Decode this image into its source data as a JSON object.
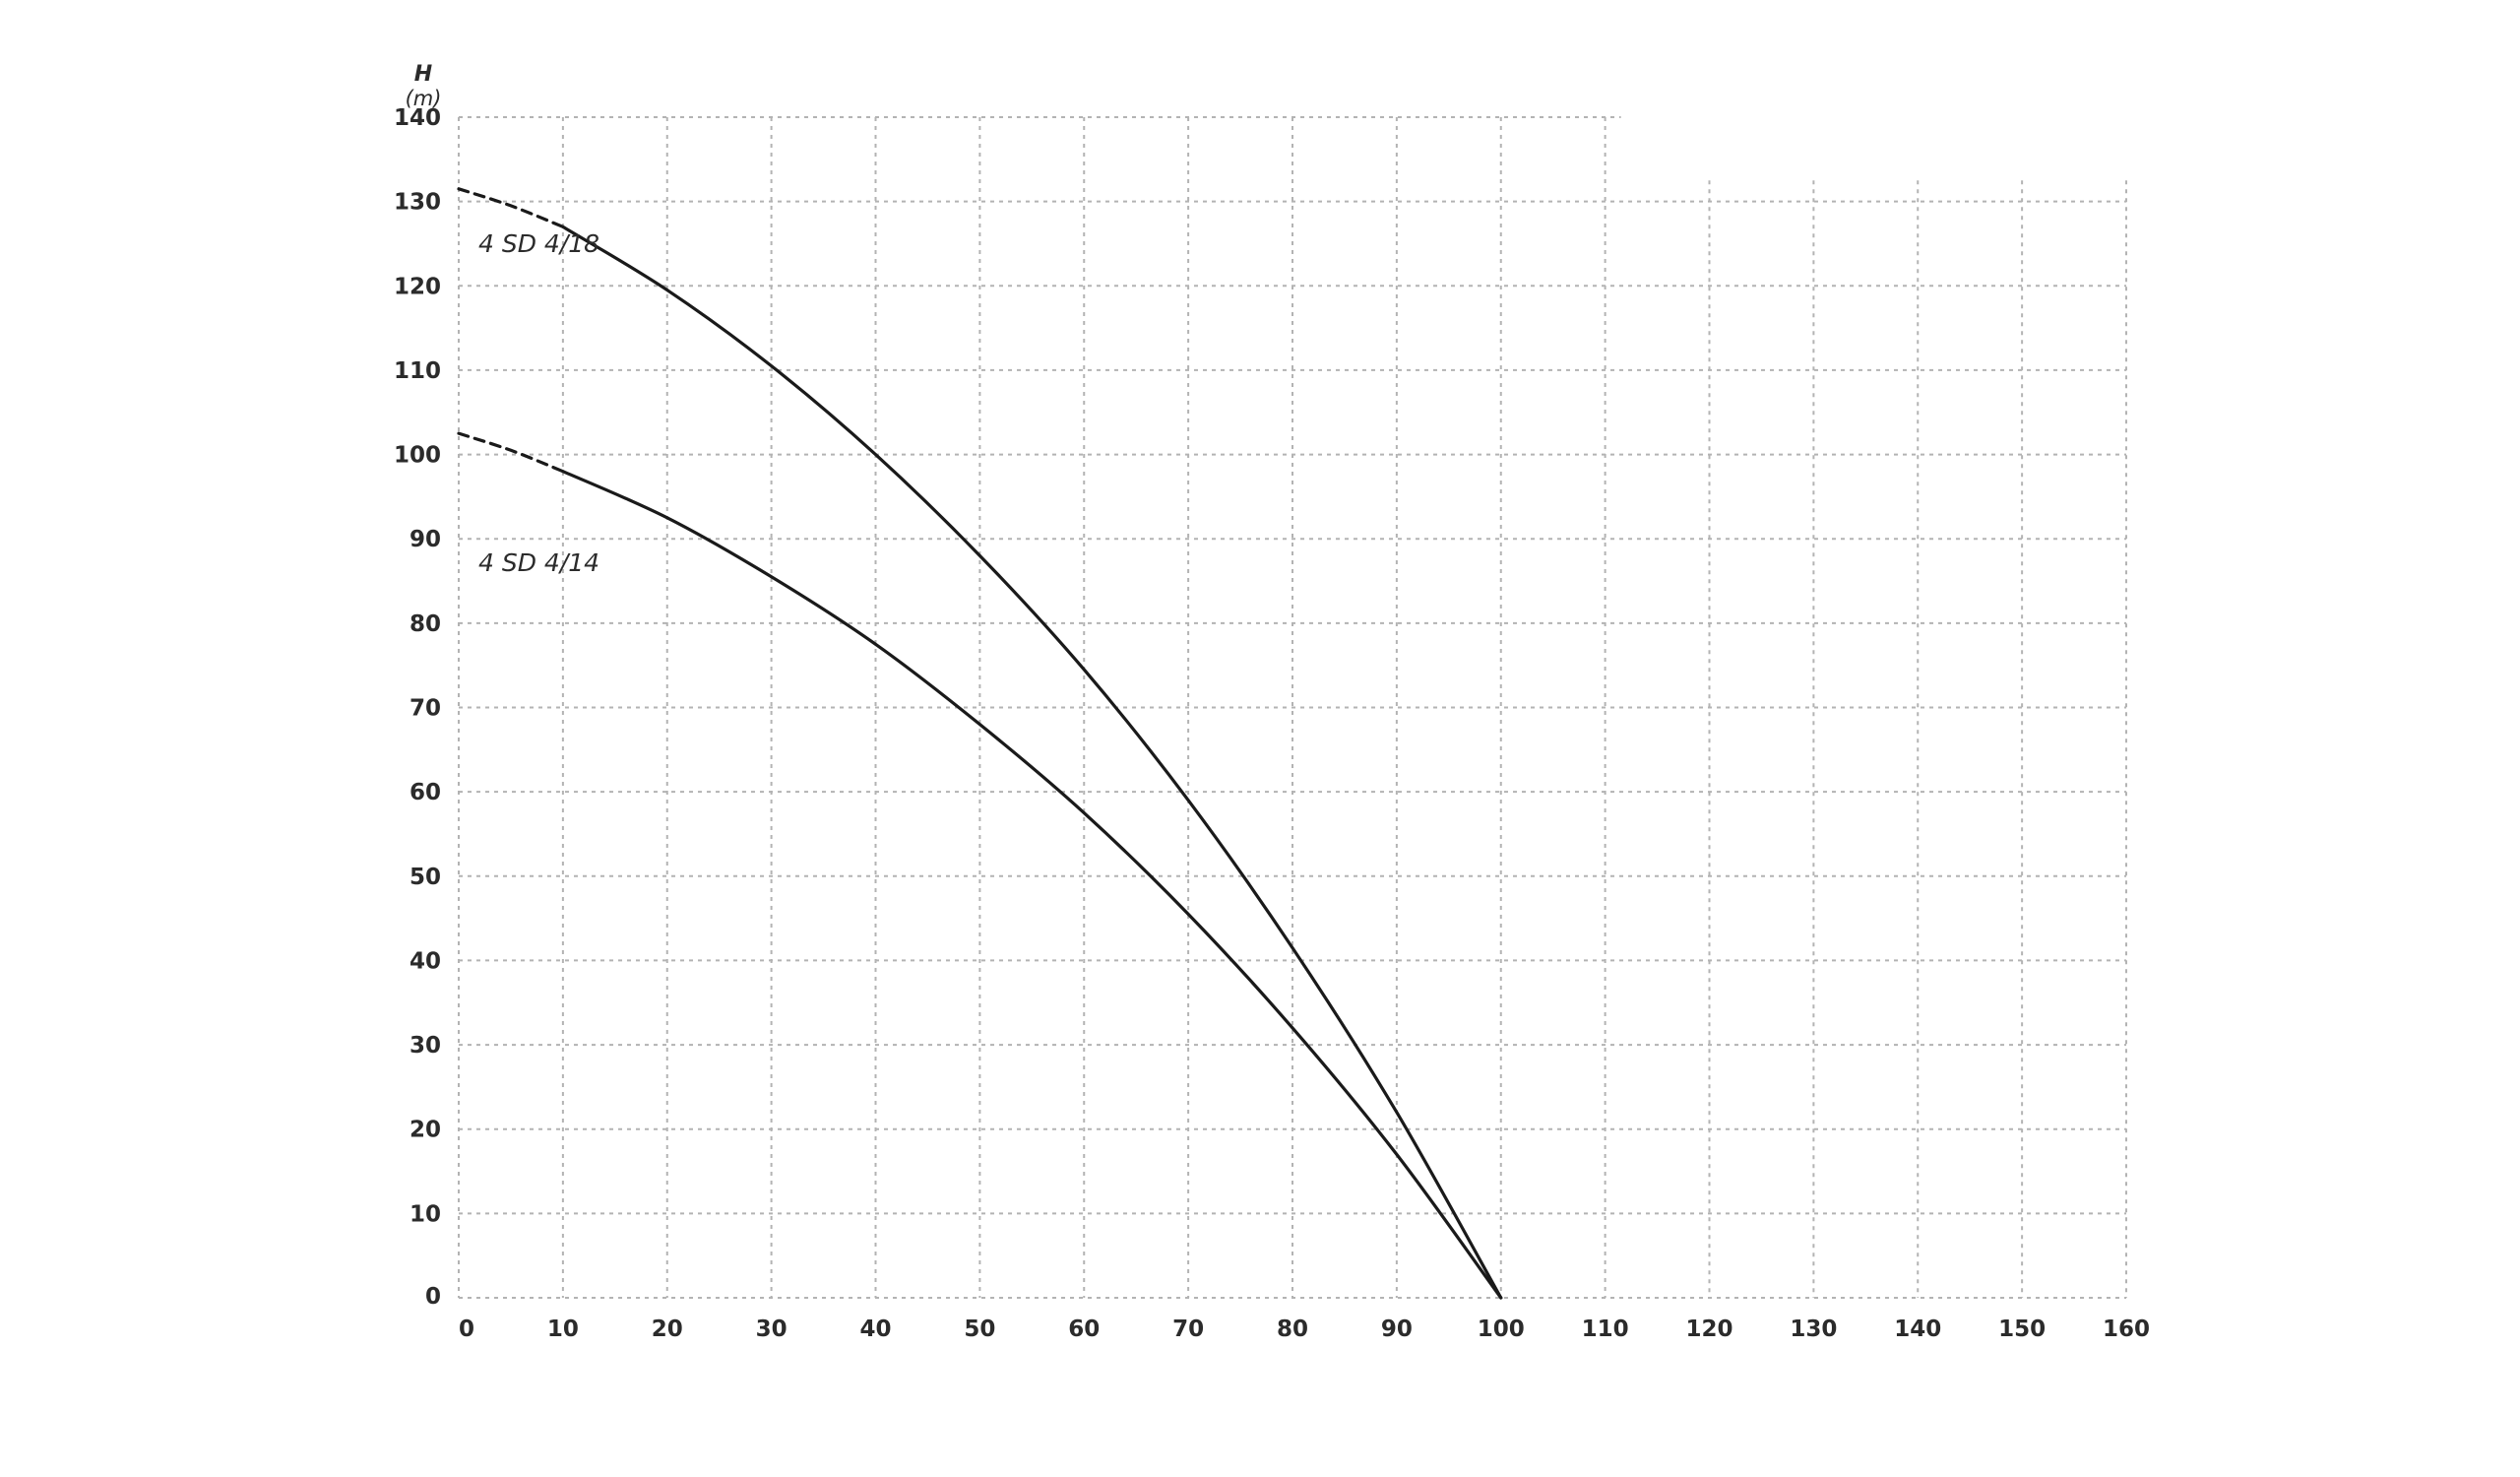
{
  "chart_data": {
    "type": "line",
    "title": "",
    "ylabel": "H",
    "yunit": "(m)",
    "xlabel": "",
    "xlim": [
      0,
      160
    ],
    "ylim": [
      0,
      140
    ],
    "x_ticks": [
      0,
      10,
      20,
      30,
      40,
      50,
      60,
      70,
      80,
      90,
      100,
      110,
      120,
      130,
      140,
      150,
      160
    ],
    "y_ticks": [
      0,
      10,
      20,
      30,
      40,
      50,
      60,
      70,
      80,
      90,
      100,
      110,
      120,
      130,
      140
    ],
    "grid": true,
    "series": [
      {
        "name": "4 SD 4/18",
        "dashed_segment": {
          "x": [
            0,
            5,
            10
          ],
          "y": [
            131.5,
            129.5,
            127
          ]
        },
        "x": [
          10,
          20,
          30,
          40,
          50,
          60,
          70,
          80,
          90,
          100
        ],
        "y": [
          127,
          119.5,
          110.5,
          100,
          88,
          74.5,
          59,
          41.5,
          22,
          0
        ]
      },
      {
        "name": "4 SD 4/14",
        "dashed_segment": {
          "x": [
            0,
            5,
            10
          ],
          "y": [
            102.5,
            100.5,
            98
          ]
        },
        "x": [
          10,
          20,
          30,
          40,
          50,
          60,
          70,
          80,
          90,
          100
        ],
        "y": [
          98,
          92.5,
          85.5,
          77.5,
          68,
          57.5,
          45.5,
          32,
          17,
          0
        ]
      }
    ]
  }
}
